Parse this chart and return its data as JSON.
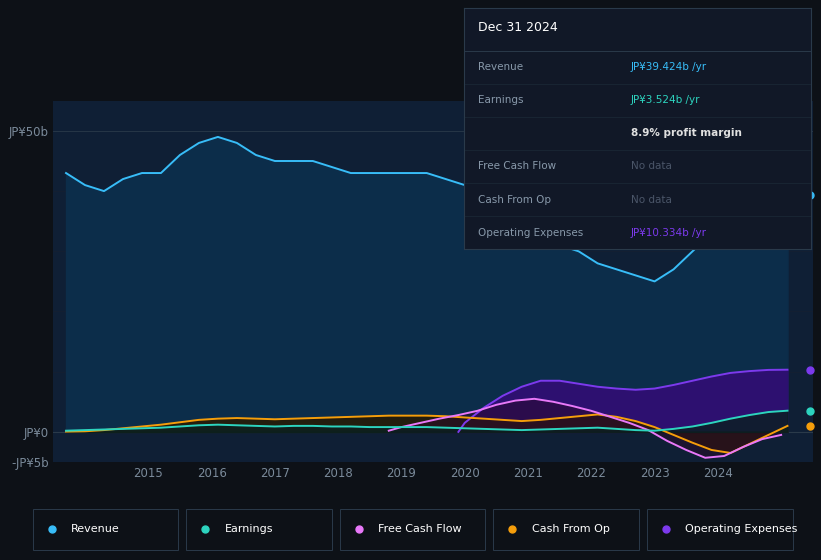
{
  "bg_color": "#0d1117",
  "plot_bg_color": "#0f1f35",
  "ylim": [
    -5000000000.0,
    55000000000.0
  ],
  "xlim_start": 2013.5,
  "xlim_end": 2025.5,
  "xticks": [
    2015,
    2016,
    2017,
    2018,
    2019,
    2020,
    2021,
    2022,
    2023,
    2024
  ],
  "legend": [
    {
      "label": "Revenue",
      "color": "#38bdf8"
    },
    {
      "label": "Earnings",
      "color": "#2dd4bf"
    },
    {
      "label": "Free Cash Flow",
      "color": "#e879f9"
    },
    {
      "label": "Cash From Op",
      "color": "#f59e0b"
    },
    {
      "label": "Operating Expenses",
      "color": "#7c3aed"
    }
  ],
  "revenue": {
    "x": [
      2013.7,
      2014.0,
      2014.3,
      2014.6,
      2014.9,
      2015.2,
      2015.5,
      2015.8,
      2016.1,
      2016.4,
      2016.7,
      2017.0,
      2017.3,
      2017.6,
      2017.9,
      2018.2,
      2018.5,
      2018.8,
      2019.1,
      2019.4,
      2019.7,
      2020.0,
      2020.3,
      2020.6,
      2020.9,
      2021.2,
      2021.5,
      2021.8,
      2022.1,
      2022.4,
      2022.7,
      2023.0,
      2023.3,
      2023.6,
      2023.9,
      2024.2,
      2024.5,
      2024.8,
      2025.1
    ],
    "y": [
      43000000000.0,
      41000000000.0,
      40000000000.0,
      42000000000.0,
      43000000000.0,
      43000000000.0,
      46000000000.0,
      48000000000.0,
      49000000000.0,
      48000000000.0,
      46000000000.0,
      45000000000.0,
      45000000000.0,
      45000000000.0,
      44000000000.0,
      43000000000.0,
      43000000000.0,
      43000000000.0,
      43000000000.0,
      43000000000.0,
      42000000000.0,
      41000000000.0,
      39000000000.0,
      37000000000.0,
      35000000000.0,
      33000000000.0,
      31000000000.0,
      30000000000.0,
      28000000000.0,
      27000000000.0,
      26000000000.0,
      25000000000.0,
      27000000000.0,
      30000000000.0,
      33000000000.0,
      36000000000.0,
      38000000000.0,
      39000000000.0,
      39400000000.0
    ],
    "color": "#38bdf8",
    "fill_color": "#0c2d4a"
  },
  "earnings": {
    "x": [
      2013.7,
      2014.0,
      2014.3,
      2014.6,
      2014.9,
      2015.2,
      2015.5,
      2015.8,
      2016.1,
      2016.4,
      2016.7,
      2017.0,
      2017.3,
      2017.6,
      2017.9,
      2018.2,
      2018.5,
      2018.8,
      2019.1,
      2019.4,
      2019.7,
      2020.0,
      2020.3,
      2020.6,
      2020.9,
      2021.2,
      2021.5,
      2021.8,
      2022.1,
      2022.4,
      2022.7,
      2023.0,
      2023.3,
      2023.6,
      2023.9,
      2024.2,
      2024.5,
      2024.8,
      2025.1
    ],
    "y": [
      200000000.0,
      300000000.0,
      400000000.0,
      500000000.0,
      600000000.0,
      700000000.0,
      900000000.0,
      1100000000.0,
      1200000000.0,
      1100000000.0,
      1000000000.0,
      900000000.0,
      1000000000.0,
      1000000000.0,
      900000000.0,
      900000000.0,
      800000000.0,
      800000000.0,
      800000000.0,
      800000000.0,
      700000000.0,
      600000000.0,
      500000000.0,
      400000000.0,
      300000000.0,
      400000000.0,
      500000000.0,
      600000000.0,
      700000000.0,
      500000000.0,
      300000000.0,
      200000000.0,
      500000000.0,
      900000000.0,
      1500000000.0,
      2200000000.0,
      2800000000.0,
      3300000000.0,
      3524000000.0
    ],
    "color": "#2dd4bf",
    "fill_color": "#0a2020"
  },
  "cash_from_op": {
    "x": [
      2013.7,
      2014.0,
      2014.3,
      2014.6,
      2014.9,
      2015.2,
      2015.5,
      2015.8,
      2016.1,
      2016.4,
      2016.7,
      2017.0,
      2017.3,
      2017.6,
      2017.9,
      2018.2,
      2018.5,
      2018.8,
      2019.1,
      2019.4,
      2019.7,
      2020.0,
      2020.3,
      2020.6,
      2020.9,
      2021.2,
      2021.5,
      2021.8,
      2022.1,
      2022.4,
      2022.7,
      2023.0,
      2023.3,
      2023.6,
      2023.9,
      2024.2,
      2024.5,
      2024.8,
      2025.1
    ],
    "y": [
      50000000.0,
      100000000.0,
      300000000.0,
      600000000.0,
      900000000.0,
      1200000000.0,
      1600000000.0,
      2000000000.0,
      2200000000.0,
      2300000000.0,
      2200000000.0,
      2100000000.0,
      2200000000.0,
      2300000000.0,
      2400000000.0,
      2500000000.0,
      2600000000.0,
      2700000000.0,
      2700000000.0,
      2700000000.0,
      2600000000.0,
      2400000000.0,
      2200000000.0,
      2000000000.0,
      1800000000.0,
      2000000000.0,
      2300000000.0,
      2600000000.0,
      2900000000.0,
      2500000000.0,
      1800000000.0,
      800000000.0,
      -500000000.0,
      -1800000000.0,
      -3000000000.0,
      -3500000000.0,
      -2000000000.0,
      -500000000.0,
      1000000000.0
    ],
    "color": "#f59e0b",
    "fill_color": "#2a1a00"
  },
  "free_cash_flow": {
    "x": [
      2018.8,
      2019.0,
      2019.3,
      2019.6,
      2019.9,
      2020.2,
      2020.5,
      2020.8,
      2021.1,
      2021.4,
      2021.7,
      2022.0,
      2022.3,
      2022.6,
      2022.9,
      2023.2,
      2023.5,
      2023.8,
      2024.1,
      2024.4,
      2024.7,
      2025.0
    ],
    "y": [
      200000000.0,
      800000000.0,
      1500000000.0,
      2200000000.0,
      2800000000.0,
      3500000000.0,
      4500000000.0,
      5200000000.0,
      5500000000.0,
      5000000000.0,
      4300000000.0,
      3500000000.0,
      2500000000.0,
      1500000000.0,
      300000000.0,
      -1500000000.0,
      -3000000000.0,
      -4300000000.0,
      -4000000000.0,
      -2500000000.0,
      -1200000000.0,
      -500000000.0
    ],
    "color": "#e879f9",
    "fill_color": "#2a0a2a"
  },
  "operating_expenses": {
    "x": [
      2019.9,
      2020.0,
      2020.3,
      2020.6,
      2020.9,
      2021.2,
      2021.5,
      2021.8,
      2022.1,
      2022.4,
      2022.7,
      2023.0,
      2023.3,
      2023.6,
      2023.9,
      2024.2,
      2024.5,
      2024.8,
      2025.1
    ],
    "y": [
      0.0,
      1500000000.0,
      4000000000.0,
      6000000000.0,
      7500000000.0,
      8500000000.0,
      8500000000.0,
      8000000000.0,
      7500000000.0,
      7200000000.0,
      7000000000.0,
      7200000000.0,
      7800000000.0,
      8500000000.0,
      9200000000.0,
      9800000000.0,
      10100000000.0,
      10300000000.0,
      10334000000.0
    ],
    "color": "#7c3aed",
    "fill_color": "#2d1070"
  },
  "tooltip": {
    "date": "Dec 31 2024",
    "rows": [
      {
        "label": "Revenue",
        "value": "JP¥39.424b /yr",
        "value_color": "#38bdf8",
        "bold": false
      },
      {
        "label": "Earnings",
        "value": "JP¥3.524b /yr",
        "value_color": "#2dd4bf",
        "bold": false
      },
      {
        "label": "",
        "value": "8.9% profit margin",
        "value_color": "#e0e0e0",
        "bold": true
      },
      {
        "label": "Free Cash Flow",
        "value": "No data",
        "value_color": "#4a5568",
        "bold": false
      },
      {
        "label": "Cash From Op",
        "value": "No data",
        "value_color": "#4a5568",
        "bold": false
      },
      {
        "label": "Operating Expenses",
        "value": "JP¥10.334b /yr",
        "value_color": "#7c3aed",
        "bold": false
      }
    ]
  }
}
